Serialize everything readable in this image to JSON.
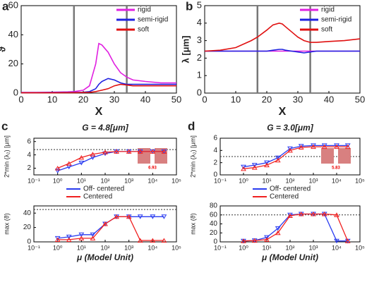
{
  "chart_data": [
    {
      "panel": "a",
      "type": "line",
      "xlabel": "X",
      "ylabel": "ϑ",
      "x": [
        0,
        5,
        10,
        15,
        17,
        20,
        22,
        24,
        25,
        26,
        28,
        30,
        32,
        34,
        36,
        40,
        45,
        50
      ],
      "xlim": [
        0,
        50
      ],
      "xticks": [
        0,
        10,
        20,
        30,
        40,
        50
      ],
      "ylim": [
        0,
        60
      ],
      "yticks": [
        0,
        20,
        40,
        60
      ],
      "vlines": [
        17,
        34
      ],
      "legend": "upper right",
      "series": [
        {
          "name": "rigid",
          "color": "#e020e0",
          "values": [
            0.5,
            0.5,
            0.6,
            0.8,
            1,
            2,
            5,
            20,
            34,
            33,
            28,
            20,
            14,
            11,
            9,
            8,
            7,
            7
          ]
        },
        {
          "name": "semi-rigid",
          "color": "#2020e0",
          "values": [
            0.3,
            0.3,
            0.4,
            0.5,
            0.5,
            0.6,
            1,
            3,
            6,
            8,
            10,
            9,
            7,
            6,
            6,
            6,
            6,
            6
          ]
        },
        {
          "name": "soft",
          "color": "#e01010",
          "values": [
            0.2,
            0.2,
            0.2,
            0.3,
            0.3,
            0.4,
            0.5,
            1,
            1.5,
            2,
            3,
            5,
            6,
            5.5,
            5,
            5,
            5,
            5
          ]
        }
      ]
    },
    {
      "panel": "b",
      "type": "line",
      "xlabel": "X",
      "ylabel": "λ [μm]",
      "x": [
        0,
        5,
        10,
        15,
        17,
        20,
        22,
        24,
        25,
        26,
        28,
        30,
        32,
        34,
        36,
        40,
        45,
        50
      ],
      "xlim": [
        0,
        50
      ],
      "xticks": [
        0,
        10,
        20,
        30,
        40,
        50
      ],
      "ylim": [
        0,
        5
      ],
      "yticks": [
        0,
        1,
        2,
        3,
        4,
        5
      ],
      "vlines": [
        17,
        34
      ],
      "legend": "upper right",
      "series": [
        {
          "name": "rigid",
          "color": "#e020e0",
          "values": [
            2.4,
            2.4,
            2.4,
            2.4,
            2.4,
            2.4,
            2.4,
            2.4,
            2.4,
            2.4,
            2.4,
            2.4,
            2.4,
            2.4,
            2.4,
            2.4,
            2.4,
            2.4
          ]
        },
        {
          "name": "semi-rigid",
          "color": "#2020e0",
          "values": [
            2.4,
            2.4,
            2.4,
            2.4,
            2.4,
            2.4,
            2.45,
            2.5,
            2.5,
            2.45,
            2.4,
            2.35,
            2.3,
            2.35,
            2.4,
            2.4,
            2.4,
            2.4
          ]
        },
        {
          "name": "soft",
          "color": "#e01010",
          "values": [
            2.4,
            2.45,
            2.6,
            3.0,
            3.2,
            3.6,
            3.9,
            4.0,
            3.95,
            3.8,
            3.5,
            3.2,
            3.0,
            2.9,
            2.9,
            2.95,
            3.0,
            3.1
          ]
        }
      ]
    },
    {
      "panel": "c",
      "type": "line",
      "title": "G = 4.8[μm]",
      "ylabel": "2*min (λ₂) [μm]",
      "xlog": true,
      "x": [
        1,
        3,
        10,
        30,
        100,
        300,
        1000,
        3000,
        10000,
        30000
      ],
      "xlim": [
        0.1,
        100000
      ],
      "xticks": [
        {
          "value": 0.1,
          "label": "10⁻¹"
        },
        {
          "value": 1,
          "label": "10⁰"
        },
        {
          "value": 10,
          "label": "10¹"
        },
        {
          "value": 100,
          "label": "10²"
        },
        {
          "value": 1000,
          "label": "10³"
        },
        {
          "value": 10000,
          "label": "10⁴"
        },
        {
          "value": 100000,
          "label": "10⁵"
        }
      ],
      "ylim": [
        1,
        6.5
      ],
      "yticks": [
        2,
        4,
        6
      ],
      "hline": 4.8,
      "legend": "below",
      "inset_label": "6.93",
      "series": [
        {
          "name": "Off- centered",
          "color": "#2a3cf0",
          "values": [
            1.6,
            2.2,
            2.8,
            3.6,
            4.2,
            4.5,
            4.5,
            4.5,
            4.5,
            4.5
          ]
        },
        {
          "name": "Centered",
          "color": "#f02020",
          "values": [
            2.0,
            2.7,
            3.6,
            4.1,
            4.4,
            4.5,
            4.5,
            4.5,
            4.5,
            4.5
          ]
        }
      ]
    },
    {
      "type": "line",
      "xlabel": "μ (Model Unit)",
      "ylabel": "max (ϑ)",
      "xlog": true,
      "x": [
        1,
        3,
        10,
        30,
        100,
        300,
        1000,
        3000,
        10000,
        30000
      ],
      "xlim": [
        0.1,
        100000
      ],
      "xticks": [
        {
          "value": 0.1,
          "label": "10⁻¹"
        },
        {
          "value": 1,
          "label": "10⁰"
        },
        {
          "value": 10,
          "label": "10¹"
        },
        {
          "value": 100,
          "label": "10²"
        },
        {
          "value": 1000,
          "label": "10³"
        },
        {
          "value": 10000,
          "label": "10⁴"
        },
        {
          "value": 100000,
          "label": "10⁵"
        }
      ],
      "ylim": [
        0,
        50
      ],
      "yticks": [
        0,
        20,
        40
      ],
      "hline": 45,
      "series": [
        {
          "color": "#2a3cf0",
          "values": [
            5,
            7,
            10,
            10,
            25,
            35,
            35,
            35,
            35,
            35
          ]
        },
        {
          "color": "#f02020",
          "values": [
            3,
            3,
            5,
            5,
            25,
            35,
            35,
            2,
            2,
            2
          ]
        }
      ]
    },
    {
      "panel": "d",
      "type": "line",
      "title": "G = 3.0[μm]",
      "ylabel": "2*min (λ₂) [μm]",
      "xlog": true,
      "x": [
        1,
        3,
        10,
        30,
        100,
        300,
        1000,
        3000,
        10000,
        30000
      ],
      "xlim": [
        0.1,
        100000
      ],
      "xticks": [
        {
          "value": 0.1,
          "label": "10⁻¹"
        },
        {
          "value": 1,
          "label": "10⁰"
        },
        {
          "value": 10,
          "label": "10¹"
        },
        {
          "value": 100,
          "label": "10²"
        },
        {
          "value": 1000,
          "label": "10³"
        },
        {
          "value": 10000,
          "label": "10⁴"
        },
        {
          "value": 100000,
          "label": "10⁵"
        }
      ],
      "ylim": [
        0,
        6
      ],
      "yticks": [
        0,
        2,
        4,
        6
      ],
      "hline": 3.0,
      "legend": "below",
      "inset_label": "5.83",
      "series": [
        {
          "name": "Off- centered",
          "color": "#2a3cf0",
          "values": [
            1.3,
            1.6,
            2.0,
            2.8,
            4.3,
            4.7,
            4.8,
            4.8,
            4.8,
            4.8
          ]
        },
        {
          "name": "Centered",
          "color": "#f02020",
          "values": [
            1.0,
            1.2,
            1.6,
            2.4,
            4.0,
            4.5,
            4.6,
            4.6,
            4.6,
            4.6
          ]
        }
      ]
    },
    {
      "type": "line",
      "xlabel": "μ (Model Unit)",
      "ylabel": "max (ϑ)",
      "xlog": true,
      "x": [
        1,
        3,
        10,
        30,
        100,
        300,
        1000,
        3000,
        10000,
        30000
      ],
      "xlim": [
        0.1,
        100000
      ],
      "xticks": [
        {
          "value": 0.1,
          "label": "10⁻¹"
        },
        {
          "value": 1,
          "label": "10⁰"
        },
        {
          "value": 10,
          "label": "10¹"
        },
        {
          "value": 100,
          "label": "10²"
        },
        {
          "value": 1000,
          "label": "10³"
        },
        {
          "value": 10000,
          "label": "10⁴"
        },
        {
          "value": 100000,
          "label": "10⁵"
        }
      ],
      "ylim": [
        0,
        80
      ],
      "yticks": [
        0,
        20,
        40,
        60,
        80
      ],
      "hline": 60,
      "series": [
        {
          "color": "#2a3cf0",
          "values": [
            2,
            3,
            10,
            30,
            60,
            62,
            62,
            62,
            2,
            2
          ]
        },
        {
          "color": "#f02020",
          "values": [
            2,
            3,
            5,
            20,
            58,
            62,
            62,
            62,
            60,
            2
          ]
        }
      ]
    }
  ]
}
